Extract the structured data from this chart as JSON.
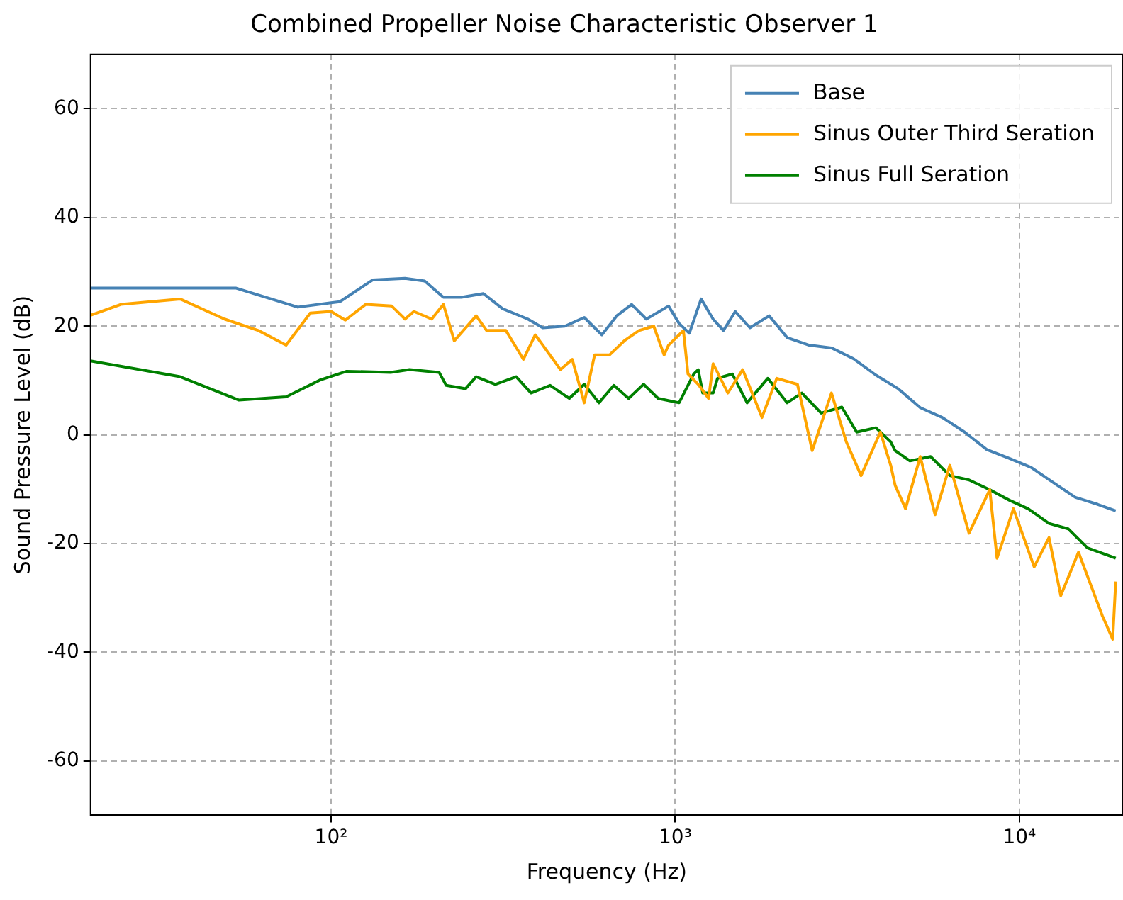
{
  "chart_data": {
    "type": "line",
    "title": "Combined Propeller Noise Characteristic Observer 1",
    "xlabel": "Frequency (Hz)",
    "ylabel": "Sound Pressure Level (dB)",
    "log": "x",
    "xlim": [
      20,
      20000
    ],
    "xticks": [
      {
        "value": 100,
        "label": "10²"
      },
      {
        "value": 1000,
        "label": "10³"
      },
      {
        "value": 10000,
        "label": "10⁴"
      }
    ],
    "ylim": [
      -70,
      70
    ],
    "yticks": [
      -60,
      -40,
      -20,
      0,
      20,
      40,
      60
    ],
    "grid": true,
    "legend": "top right",
    "series": [
      {
        "name": "Base",
        "color": "#4682b4",
        "x": [
          20,
          53,
          80,
          100,
          106,
          132,
          164,
          187,
          212,
          239,
          277,
          315,
          373,
          412,
          478,
          544,
          612,
          676,
          747,
          824,
          956,
          1026,
          1099,
          1189,
          1288,
          1380,
          1494,
          1648,
          1875,
          2113,
          2449,
          2844,
          3297,
          3828,
          4440,
          5150,
          5970,
          6931,
          8040,
          9330,
          10820,
          12560,
          14550,
          16900,
          19050
        ],
        "values": [
          27,
          27,
          23.5,
          24.3,
          24.5,
          28.5,
          28.8,
          28.3,
          25.3,
          25.3,
          26,
          23.2,
          21.3,
          19.7,
          20,
          21.6,
          18.4,
          21.9,
          24,
          21.3,
          23.7,
          20.5,
          18.7,
          25,
          21.3,
          19.2,
          22.7,
          19.7,
          21.9,
          17.9,
          16.5,
          16,
          14,
          11,
          8.5,
          5,
          3.2,
          0.5,
          -2.7,
          -4.3,
          -6,
          -8.8,
          -11.5,
          -12.8,
          -14
        ]
      },
      {
        "name": "Sinus Outer Third Seration",
        "color": "#ffa500",
        "x": [
          20,
          24.5,
          36.4,
          49,
          61.5,
          74,
          87,
          100,
          110,
          126,
          150,
          164,
          174,
          196,
          212,
          228,
          264,
          283,
          322,
          362,
          392,
          421,
          464,
          502,
          544,
          583,
          644,
          711,
          785,
          866,
          928,
          956,
          1026,
          1056,
          1089,
          1166,
          1250,
          1288,
          1422,
          1570,
          1786,
          1972,
          2265,
          2500,
          2844,
          3141,
          3467,
          3945,
          4227,
          4355,
          4668,
          5150,
          5687,
          6279,
          7139,
          8200,
          8610,
          9610,
          11040,
          12190,
          13190,
          14850,
          17420,
          18670,
          19050
        ],
        "values": [
          22,
          24,
          25,
          21.3,
          19.2,
          16.5,
          22.4,
          22.7,
          21.1,
          24,
          23.7,
          21.3,
          22.7,
          21.3,
          24,
          17.3,
          21.9,
          19.2,
          19.2,
          13.9,
          18.4,
          15.7,
          12,
          13.9,
          5.9,
          14.7,
          14.7,
          17.3,
          19.2,
          20,
          14.7,
          16.5,
          18.4,
          19.2,
          11.2,
          9.3,
          6.7,
          13.1,
          7.7,
          12,
          3.2,
          10.4,
          9.3,
          -2.9,
          7.7,
          -1.3,
          -7.5,
          0.5,
          -5.6,
          -9.3,
          -13.6,
          -4,
          -14.7,
          -5.6,
          -18.1,
          -10.1,
          -22.7,
          -13.6,
          -24.3,
          -18.9,
          -29.6,
          -21.6,
          -33.3,
          -37.6,
          -27
        ]
      },
      {
        "name": "Sinus Full Seration",
        "color": "#008000",
        "x": [
          20,
          36.4,
          54,
          74,
          93,
          111,
          149,
          169,
          206,
          216,
          246,
          264,
          300,
          345,
          381,
          433,
          492,
          544,
          600,
          663,
          732,
          809,
          892,
          1026,
          1132,
          1166,
          1202,
          1288,
          1327,
          1465,
          1617,
          1857,
          2113,
          2333,
          2654,
          3048,
          3366,
          3828,
          4227,
          4355,
          4807,
          5521,
          6279,
          7139,
          8200,
          9330,
          10600,
          12190,
          13860,
          15770,
          19050
        ],
        "values": [
          13.6,
          10.7,
          6.4,
          7,
          10.1,
          11.7,
          11.5,
          12,
          11.5,
          9.1,
          8.5,
          10.7,
          9.3,
          10.7,
          7.7,
          9.1,
          6.7,
          9.3,
          5.9,
          9.1,
          6.7,
          9.3,
          6.7,
          5.9,
          11.2,
          12,
          7.7,
          7.7,
          10.4,
          11.2,
          5.9,
          10.4,
          5.9,
          7.7,
          4,
          5.1,
          0.5,
          1.3,
          -1.3,
          -2.9,
          -4.8,
          -4,
          -7.5,
          -8.3,
          -10.1,
          -12,
          -13.6,
          -16.3,
          -17.3,
          -20.8,
          -22.7
        ]
      }
    ]
  }
}
